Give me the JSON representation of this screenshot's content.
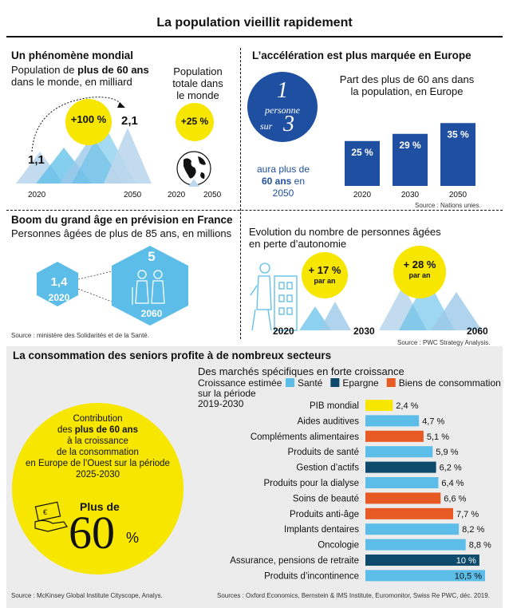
{
  "title": "La population vieillit rapidement",
  "world": {
    "heading": "Un phénomène mondial",
    "subtitle_pre": "Population de ",
    "subtitle_bold": "plus de 60 ans",
    "subtitle_post": "dans le monde, en milliard",
    "val_2020": "1,1",
    "val_2050": "2,1",
    "growth": "+100 %",
    "year_start": "2020",
    "year_end": "2050",
    "total_label": "Population totale dans le monde",
    "total_growth": "+25 %",
    "total_year_start": "2020",
    "total_year_end": "2050"
  },
  "europe": {
    "heading": "L’accélération est plus marquée en Europe",
    "ratio_number": "1",
    "ratio_word1": "personne",
    "ratio_word2": "sur",
    "ratio_denominator": "3",
    "caption_pre": "aura plus de",
    "caption_bold": "60 ans",
    "caption_post": "en 2050",
    "source": "Source : Nations unies."
  },
  "france": {
    "heading": "Boom du grand âge en prévision en France",
    "subtitle": "Personnes âgées de plus de 85 ans, en millions",
    "val_2020": "1,4",
    "year_2020": "2020",
    "val_2060": "5",
    "year_2060": "2060",
    "source": "Source : ministère des Solidarités et de la Santé."
  },
  "autonomy": {
    "title": "Evolution du nombre de personnes âgées en perte d’autonomie",
    "growth1": "+ 17 %",
    "growth1_unit": "par an",
    "growth2": "+ 28 %",
    "growth2_unit": "par an",
    "year_start": "2020",
    "year_mid": "2030",
    "year_end": "2060",
    "source": "Source : PWC Strategy Analysis."
  },
  "consumption": {
    "heading": "La consommation des seniors profite à de nombreux secteurs",
    "circle_line1": "Contribution",
    "circle_line2_pre": "des ",
    "circle_line2_bold": "plus de 60 ans",
    "circle_line3": "à la croissance",
    "circle_line4": "de la consommation",
    "circle_line5": "en Europe de l’Ouest sur la période",
    "circle_line6": "2025-2030",
    "plus_de": "Plus de",
    "big_value": "60",
    "big_unit": "%",
    "source_left": "Source : McKinsey Global Institute Cityscope, Analys.",
    "source_right": "Sources : Oxford Economics, Bernstein & IMS Institute, Euromonitor, Swiss Re PWC, déc. 2019."
  },
  "colors": {
    "yellow": "#f7e600",
    "navy": "#1f4fa0",
    "light_blue": "#5bbde8",
    "dark_teal": "#0d4a6b",
    "orange": "#e75a23",
    "pale_blue": "#bdd7ec",
    "pib_yellow": "#f7e600"
  },
  "chart_data": [
    {
      "type": "bar",
      "title": "Part des plus de 60 ans dans la population, en Europe",
      "categories": [
        "2020",
        "2030",
        "2050"
      ],
      "values": [
        25,
        29,
        35
      ],
      "labels": [
        "25 %",
        "29 %",
        "35 %"
      ],
      "ylim": [
        0,
        40
      ]
    },
    {
      "type": "bar",
      "title": "Des marchés spécifiques en forte croissance",
      "legend_title": "Croissance estimée sur la période 2019-2030",
      "legend": [
        {
          "name": "Santé",
          "color": "#5bbde8"
        },
        {
          "name": "Epargne",
          "color": "#0d4a6b"
        },
        {
          "name": "Biens de consommation",
          "color": "#e75a23"
        }
      ],
      "categories": [
        "PIB mondial",
        "Aides auditives",
        "Compléments alimentaires",
        "Produits de santé",
        "Gestion d’actifs",
        "Produits pour la dialyse",
        "Soins de beauté",
        "Produits anti-âge",
        "Implants dentaires",
        "Oncologie",
        "Assurance, pensions de retraite",
        "Produits d’incontinence"
      ],
      "values": [
        2.4,
        4.7,
        5.1,
        5.9,
        6.2,
        6.4,
        6.6,
        7.7,
        8.2,
        8.8,
        10,
        10.5
      ],
      "labels": [
        "2,4 %",
        "4,7 %",
        "5,1 %",
        "5,9 %",
        "6,2 %",
        "6,4 %",
        "6,6 %",
        "7,7 %",
        "8,2 %",
        "8,8 %",
        "10 %",
        "10,5 %"
      ],
      "groups": [
        "pib",
        "Santé",
        "Biens de consommation",
        "Santé",
        "Epargne",
        "Santé",
        "Biens de consommation",
        "Biens de consommation",
        "Santé",
        "Santé",
        "Epargne",
        "Santé"
      ],
      "xlim": [
        0,
        11
      ]
    }
  ]
}
